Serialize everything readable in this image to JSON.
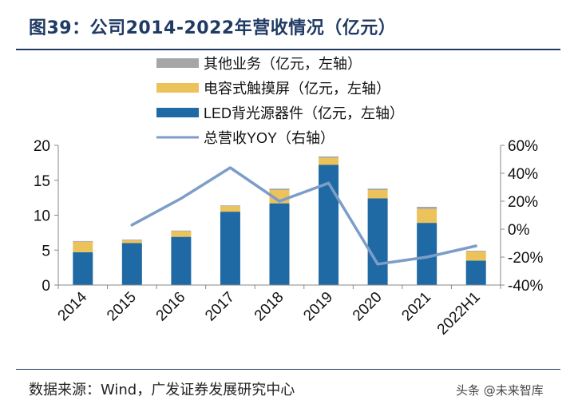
{
  "figure": {
    "title": "图39：公司2014-2022年营收情况（亿元）",
    "source": "数据来源：Wind，广发证券发展研究中心",
    "watermark": "头条 @未来智库"
  },
  "colors": {
    "other": "#a6a6a6",
    "touch": "#ecc25a",
    "led": "#1f6aa5",
    "yoy": "#7d9dc9",
    "navy": "#1f3a63"
  },
  "chart_data": {
    "type": "bar",
    "stacked": true,
    "categories": [
      "2014",
      "2015",
      "2016",
      "2017",
      "2018",
      "2019",
      "2020",
      "2021",
      "2022H1"
    ],
    "series": [
      {
        "name": "LED背光源器件（亿元，左轴）",
        "key": "led",
        "values": [
          4.7,
          6.0,
          6.9,
          10.5,
          11.7,
          17.2,
          12.4,
          8.9,
          3.5
        ]
      },
      {
        "name": "电容式触摸屏（亿元，左轴）",
        "key": "touch",
        "values": [
          1.5,
          0.4,
          0.8,
          0.8,
          1.9,
          1.0,
          1.2,
          2.0,
          1.3
        ]
      },
      {
        "name": "其他业务（亿元，左轴）",
        "key": "other",
        "values": [
          0.1,
          0.1,
          0.1,
          0.1,
          0.2,
          0.2,
          0.2,
          0.3,
          0.1
        ]
      }
    ],
    "line": {
      "name": "总营收YOY（右轴）",
      "key": "yoy",
      "values": [
        null,
        3,
        22,
        44,
        20,
        33,
        -25,
        -20,
        -12
      ]
    },
    "left_axis": {
      "min": 0,
      "max": 20,
      "ticks": [
        0,
        5,
        10,
        15,
        20
      ]
    },
    "right_axis": {
      "min": -40,
      "max": 60,
      "ticks": [
        -40,
        -20,
        0,
        20,
        40,
        60
      ],
      "tick_labels": [
        "-40%",
        "-20%",
        "0%",
        "20%",
        "40%",
        "60%"
      ]
    },
    "legend_order": [
      "other",
      "touch",
      "led",
      "yoy"
    ],
    "legend_labels": {
      "other": "其他业务（亿元，左轴）",
      "touch": "电容式触摸屏（亿元，左轴）",
      "led": "LED背光源器件（亿元，左轴）",
      "yoy": "总营收YOY（右轴）"
    }
  }
}
